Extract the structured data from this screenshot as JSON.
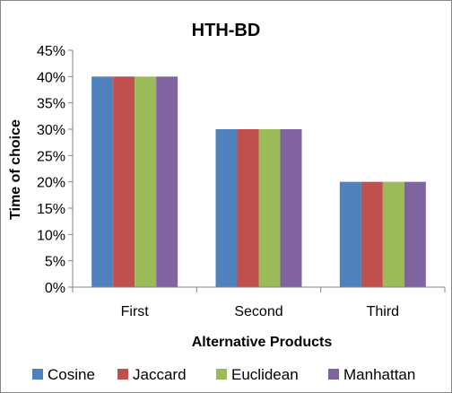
{
  "chart_data": {
    "type": "bar",
    "title": "HTH-BD",
    "xlabel": "Alternative Products",
    "ylabel": "Time of choice",
    "categories": [
      "First",
      "Second",
      "Third"
    ],
    "series": [
      {
        "name": "Cosine",
        "values": [
          0.4,
          0.3,
          0.2
        ],
        "color": "#4F81BD"
      },
      {
        "name": "Jaccard",
        "values": [
          0.4,
          0.3,
          0.2
        ],
        "color": "#C0504D"
      },
      {
        "name": "Euclidean",
        "values": [
          0.4,
          0.3,
          0.2
        ],
        "color": "#9BBB59"
      },
      {
        "name": "Manhattan",
        "values": [
          0.4,
          0.3,
          0.2
        ],
        "color": "#8064A2"
      }
    ],
    "ylim": [
      0,
      0.45
    ],
    "yticks": [
      "0%",
      "5%",
      "10%",
      "15%",
      "20%",
      "25%",
      "30%",
      "35%",
      "40%",
      "45%"
    ],
    "grid": false,
    "legend_position": "bottom"
  }
}
